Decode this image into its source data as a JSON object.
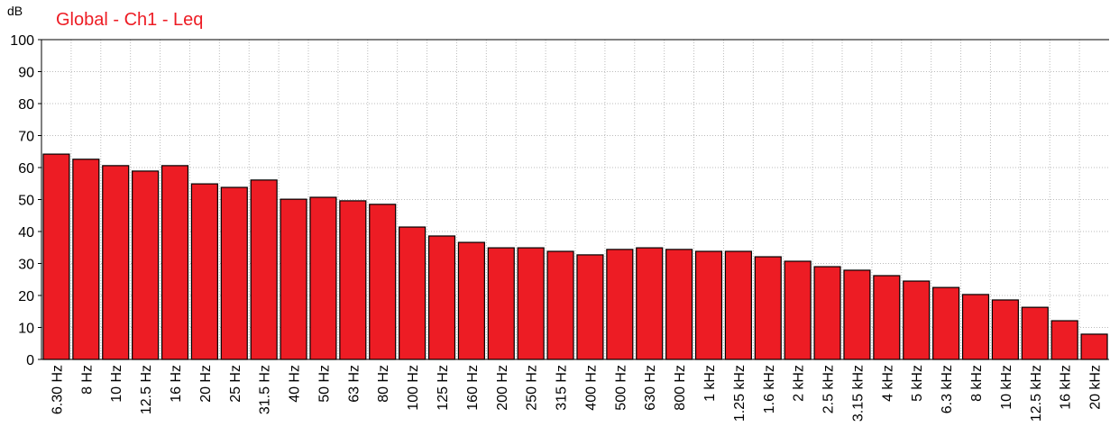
{
  "chart_data": {
    "type": "bar",
    "title": "Global - Ch1 - Leq",
    "y_axis_label": "dB",
    "categories": [
      "6.30 Hz",
      "8 Hz",
      "10 Hz",
      "12.5 Hz",
      "16 Hz",
      "20 Hz",
      "25 Hz",
      "31.5 Hz",
      "40 Hz",
      "50 Hz",
      "63 Hz",
      "80 Hz",
      "100 Hz",
      "125 Hz",
      "160 Hz",
      "200 Hz",
      "250 Hz",
      "315 Hz",
      "400 Hz",
      "500 Hz",
      "630 Hz",
      "800 Hz",
      "1 kHz",
      "1.25 kHz",
      "1.6 kHz",
      "2 kHz",
      "2.5 kHz",
      "3.15 kHz",
      "4 kHz",
      "5 kHz",
      "6.3 kHz",
      "8 kHz",
      "10 kHz",
      "12.5 kHz",
      "16 kHz",
      "20 kHz"
    ],
    "values": [
      64.2,
      62.6,
      60.6,
      58.9,
      60.6,
      54.9,
      53.8,
      56.1,
      50.1,
      50.7,
      49.6,
      48.5,
      41.4,
      38.6,
      36.6,
      34.9,
      34.9,
      33.8,
      32.7,
      34.4,
      34.9,
      34.4,
      33.8,
      33.8,
      32.1,
      30.7,
      29.0,
      27.9,
      26.2,
      24.5,
      22.5,
      20.3,
      18.6,
      16.3,
      12.1,
      7.9
    ],
    "color": "#ed1c24",
    "ylim": [
      0,
      100
    ],
    "yticks": [
      0,
      10,
      20,
      30,
      40,
      50,
      60,
      70,
      80,
      90,
      100
    ],
    "grid": true
  }
}
